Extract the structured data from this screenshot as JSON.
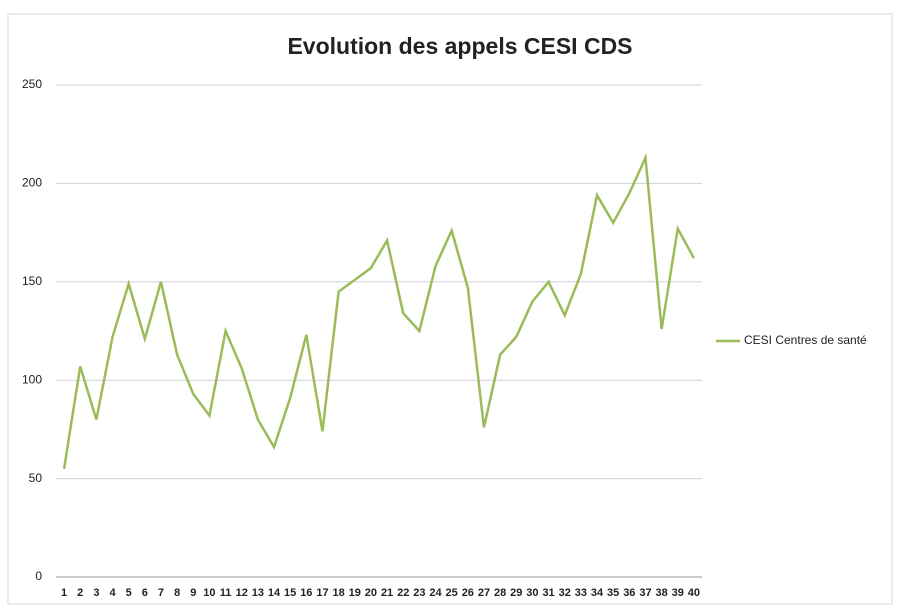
{
  "chart_data": {
    "type": "line",
    "title": "Evolution des appels CESI CDS",
    "categories": [
      "1",
      "2",
      "3",
      "4",
      "5",
      "6",
      "7",
      "8",
      "9",
      "10",
      "11",
      "12",
      "13",
      "14",
      "15",
      "16",
      "17",
      "18",
      "19",
      "20",
      "21",
      "22",
      "23",
      "24",
      "25",
      "26",
      "27",
      "28",
      "29",
      "30",
      "31",
      "32",
      "33",
      "34",
      "35",
      "36",
      "37",
      "38",
      "39",
      "40"
    ],
    "series": [
      {
        "name": "CESI Centres de santé",
        "color": "#9bbb59",
        "values": [
          55,
          107,
          80,
          122,
          149,
          121,
          150,
          113,
          93,
          82,
          125,
          106,
          80,
          66,
          91,
          123,
          74,
          145,
          151,
          157,
          171,
          134,
          125,
          158,
          176,
          147,
          76,
          113,
          122,
          140,
          150,
          133,
          154,
          194,
          180,
          195,
          213,
          126,
          177,
          162
        ]
      }
    ],
    "ylim": [
      0,
      250
    ],
    "yticks": [
      0,
      50,
      100,
      150,
      200,
      250
    ],
    "grid": true,
    "legend": "right"
  }
}
